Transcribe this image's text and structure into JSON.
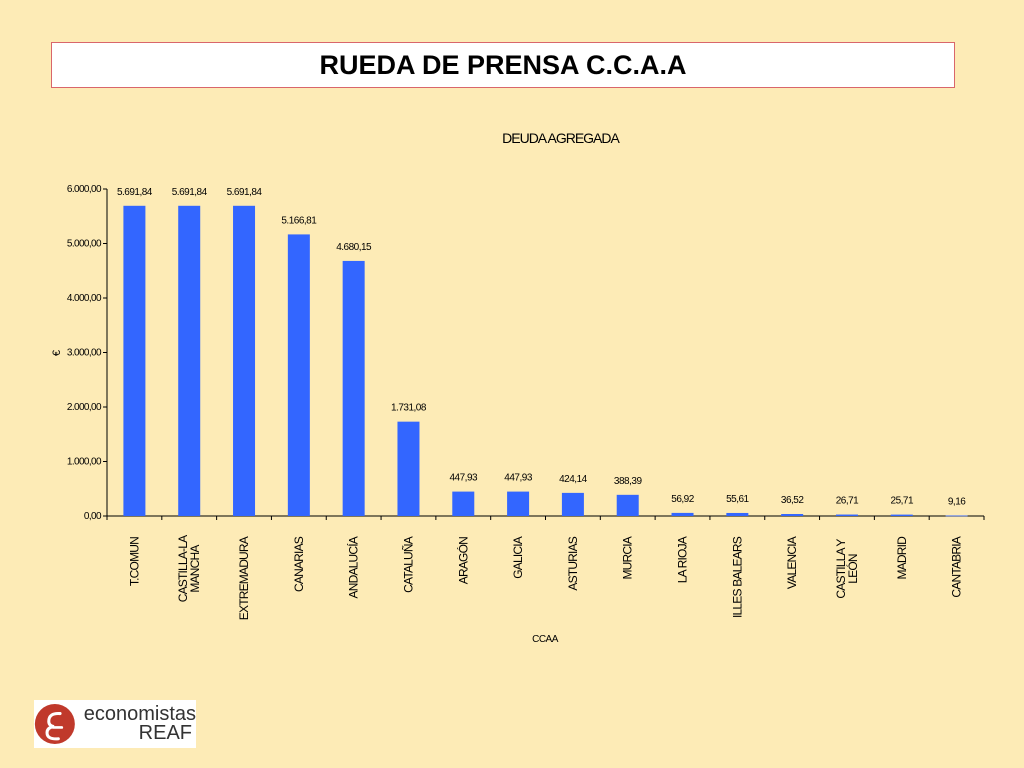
{
  "header": {
    "title": "RUEDA DE PRENSA C.C.A.A"
  },
  "chart_data": {
    "type": "bar",
    "title": "DEUDA AGREGADA",
    "xlabel": "CCAA",
    "ylabel": "€",
    "ylim": [
      0,
      6000
    ],
    "yticks": [
      "0,00",
      "1.000,00",
      "2.000,00",
      "3.000,00",
      "4.000,00",
      "5.000,00",
      "6.000,00"
    ],
    "bar_color": "#3366FF",
    "categories": [
      [
        "T.COMUN"
      ],
      [
        "CASTILLA-LA",
        "MANCHA"
      ],
      [
        "EXTREMADURA"
      ],
      [
        "CANARIAS"
      ],
      [
        "ANDALUCÍA"
      ],
      [
        "CATALUÑA"
      ],
      [
        "ARAGÓN"
      ],
      [
        "GALICIA"
      ],
      [
        "ASTURIAS"
      ],
      [
        "MURCIA"
      ],
      [
        "LA RIOJA"
      ],
      [
        "ILLES BALEARS"
      ],
      [
        "VALENCIA"
      ],
      [
        "CASTILLA Y",
        "LEÓN"
      ],
      [
        "MADRID"
      ],
      [
        "CANTABRIA"
      ]
    ],
    "values": [
      5691.84,
      5691.84,
      5691.84,
      5166.81,
      4680.15,
      1731.08,
      447.93,
      447.93,
      424.14,
      388.39,
      56.92,
      55.61,
      36.52,
      26.71,
      25.71,
      9.16
    ],
    "value_labels": [
      "5.691,84",
      "5.691,84",
      "5.691,84",
      "5.166,81",
      "4.680,15",
      "1.731,08",
      "447,93",
      "447,93",
      "424,14",
      "388,39",
      "56,92",
      "55,61",
      "36,52",
      "26,71",
      "25,71",
      "9,16"
    ],
    "grid": false,
    "legend": "none"
  },
  "logo": {
    "line1": "economistas",
    "line2": "REAF",
    "icon": "reaf-logo-icon",
    "color": "#C0392B"
  }
}
